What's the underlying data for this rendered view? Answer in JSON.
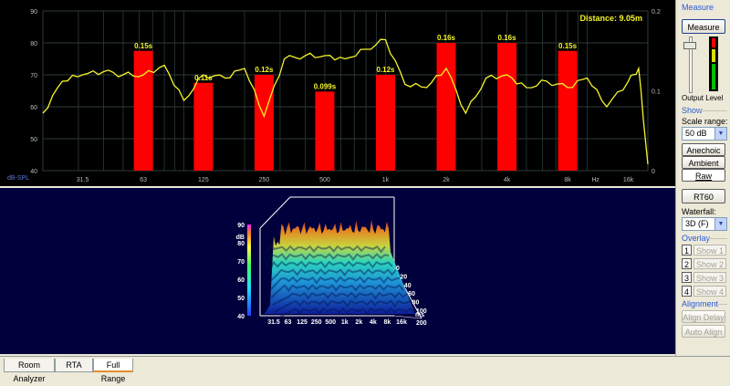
{
  "top_chart": {
    "distance_label": "Distance: 9.05m",
    "y_left_ticks": [
      "90",
      "80",
      "70",
      "60",
      "50",
      "40"
    ],
    "y_right_ticks": [
      "0.2",
      "0.1",
      "0"
    ],
    "unit_label": "dB-SPL",
    "x_ticks": [
      "31.5",
      "63",
      "125",
      "250",
      "500",
      "1k",
      "2k",
      "4k",
      "8k",
      "Hz",
      "16k"
    ],
    "colors": {
      "curve": "#f5f52a",
      "bar": "#ff0000",
      "grid": "#2b3a3a",
      "axis_text": "#bbbbbb"
    }
  },
  "chart_data": {
    "type": "bar",
    "categories": [
      "63",
      "125",
      "250",
      "500",
      "1k",
      "2k",
      "4k",
      "8k"
    ],
    "values": [
      0.15,
      0.11,
      0.12,
      0.099,
      0.12,
      0.16,
      0.16,
      0.15
    ],
    "value_labels": [
      "0.15s",
      "0.11s",
      "0.12s",
      "0.099s",
      "0.12s",
      "0.16s",
      "0.16s",
      "0.15s"
    ],
    "ylim_right": [
      0,
      0.2
    ],
    "ylim_left": [
      40,
      90
    ],
    "curve": {
      "x": [
        20,
        25,
        31.5,
        40,
        50,
        63,
        80,
        100,
        125,
        160,
        200,
        250,
        315,
        400,
        500,
        630,
        800,
        1000,
        1250,
        1600,
        2000,
        2500,
        3150,
        4000,
        5000,
        6300,
        8000,
        10000,
        12500,
        16000,
        18000,
        20000
      ],
      "y": [
        58,
        68,
        70,
        71,
        70,
        70,
        73,
        62,
        70,
        69,
        72,
        57,
        75,
        76,
        76,
        75,
        78,
        81,
        67,
        66,
        72,
        58,
        69,
        70,
        66,
        68,
        66,
        69,
        60,
        68,
        72,
        42
      ]
    }
  },
  "waterfall": {
    "z_ticks": [
      "90",
      "80",
      "70",
      "60",
      "50",
      "40"
    ],
    "z_unit": "dB",
    "x_ticks": [
      "31.5",
      "63",
      "125",
      "250",
      "500",
      "1k",
      "2k",
      "4k",
      "8k",
      "16k"
    ],
    "t_ticks": [
      "0",
      "20",
      "40",
      "60",
      "80",
      "100"
    ],
    "t_extra": "200",
    "t_unit": "ms"
  },
  "sidebar": {
    "measure_title": "Measure",
    "measure_button": "Measure",
    "output_level": "Output Level",
    "show_title": "Show",
    "scale_range_label": "Scale range:",
    "scale_range_value": "50 dB",
    "anechoic": "Anechoic",
    "ambient": "Ambient",
    "raw": "Raw",
    "rt60": "RT60",
    "waterfall_label": "Waterfall:",
    "waterfall_value": "3D (F)",
    "overlay_title": "Overlay",
    "overlays": [
      {
        "num": "1",
        "label": "Show 1"
      },
      {
        "num": "2",
        "label": "Show 2"
      },
      {
        "num": "3",
        "label": "Show 3"
      },
      {
        "num": "4",
        "label": "Show 4"
      }
    ],
    "alignment_title": "Alignment",
    "align_delay": "Align Delay",
    "auto_align": "Auto Align"
  },
  "tabs": [
    "Room Analyzer",
    "RTA",
    "Full Range"
  ]
}
